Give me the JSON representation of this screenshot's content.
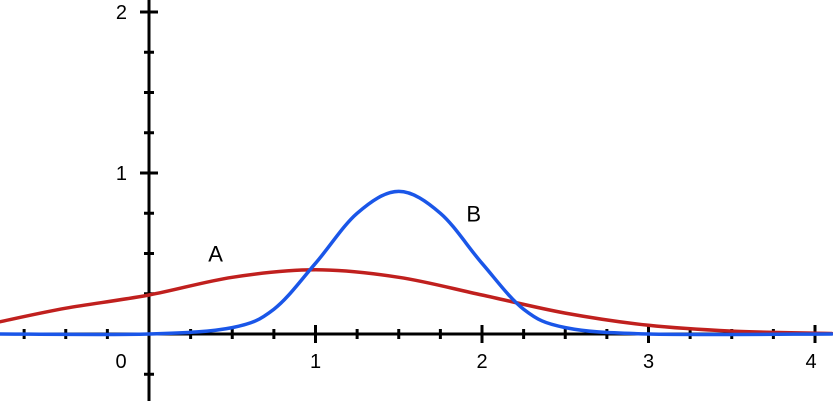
{
  "chart_data": {
    "type": "line",
    "title": "",
    "xlabel": "",
    "ylabel": "",
    "xlim": [
      -0.9,
      4.1
    ],
    "ylim": [
      -0.4,
      2.05
    ],
    "grid": false,
    "legend": "none",
    "x_tick_labels": [
      "0",
      "1",
      "2",
      "3",
      "4"
    ],
    "y_tick_labels": [
      "1",
      "2"
    ],
    "series": [
      {
        "name": "A",
        "color": "#c0201e",
        "x": [
          -0.9,
          -0.5,
          0,
          0.5,
          1.0,
          1.5,
          2.0,
          2.5,
          3.0,
          3.5,
          4.1
        ],
        "y": [
          0.075,
          0.16,
          0.242,
          0.352,
          0.399,
          0.352,
          0.242,
          0.13,
          0.054,
          0.018,
          0.003
        ]
      },
      {
        "name": "B",
        "color": "#1a56e8",
        "x": [
          -0.9,
          0,
          0.5,
          0.75,
          1.0,
          1.25,
          1.5,
          1.75,
          2.0,
          2.25,
          2.5,
          3.0,
          4.1
        ],
        "y": [
          0.0,
          0.0,
          0.04,
          0.154,
          0.439,
          0.75,
          0.886,
          0.75,
          0.439,
          0.154,
          0.04,
          0.0,
          0.0
        ]
      }
    ]
  }
}
